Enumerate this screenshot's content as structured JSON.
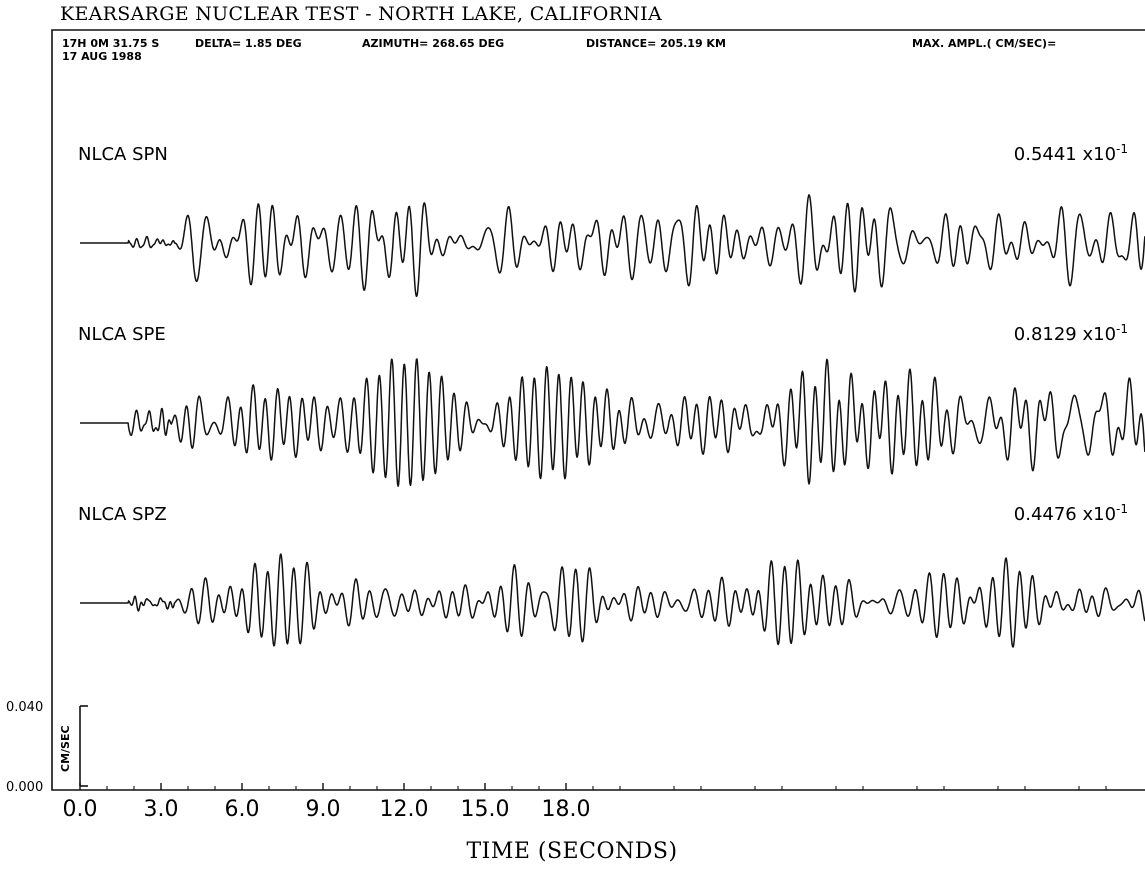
{
  "chart_data": {
    "type": "line",
    "title": "KEARSARGE NUCLEAR TEST  -  NORTH LAKE, CALIFORNIA",
    "header": {
      "time": "17H 0M 31.75 S",
      "date": "17 AUG 1988",
      "delta": "DELTA= 1.85  DEG",
      "azimuth": "AZIMUTH= 268.65  DEG",
      "distance": "DISTANCE= 205.19  KM",
      "max_ampl_label": "MAX. AMPL.( CM/SEC)="
    },
    "xlabel": "TIME (SECONDS)",
    "x_range": [
      0.0,
      20.0
    ],
    "x_ticks": [
      "0.0",
      "3.0",
      "6.0",
      "9.0",
      "12.0",
      "15.0",
      "18.0"
    ],
    "x_tick_values": [
      0,
      3,
      6,
      9,
      12,
      15,
      18
    ],
    "scale_bar": {
      "unit": "CM/SEC",
      "ticks": [
        "0.040",
        "0.000"
      ],
      "tick_values": [
        0.04,
        0.0
      ]
    },
    "series": [
      {
        "name": "NLCA SPN",
        "max_ampl": "0.5441",
        "exponent_base": "x10",
        "exponent": "-1",
        "onset_s": 3.5,
        "peak_window": [
          4.0,
          20.0
        ],
        "peak_cm_s": 0.05441
      },
      {
        "name": "NLCA SPE",
        "max_ampl": "0.8129",
        "exponent_base": "x10",
        "exponent": "-1",
        "onset_s": 3.4,
        "peak_window": [
          4.0,
          20.0
        ],
        "peak_cm_s": 0.08129
      },
      {
        "name": "NLCA SPZ",
        "max_ampl": "0.4476",
        "exponent_base": "x10",
        "exponent": "-1",
        "onset_s": 3.5,
        "peak_window": [
          4.0,
          20.0
        ],
        "peak_cm_s": 0.04476
      }
    ],
    "grid": false
  }
}
